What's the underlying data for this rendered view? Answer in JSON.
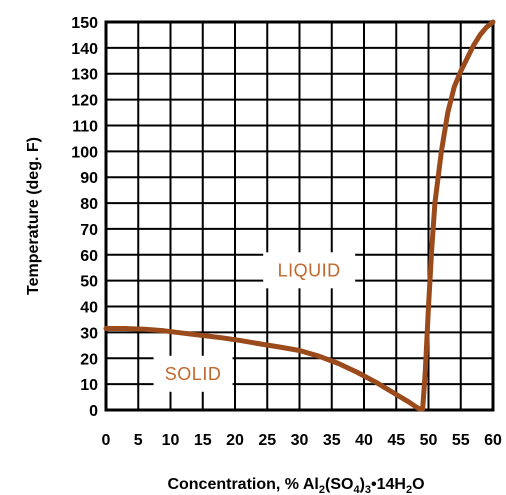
{
  "chart_data": {
    "type": "line",
    "title": "",
    "xlabel": "Concentration, % Al2(SO4)3•14H2O",
    "xlabel_parts": {
      "prefix": "Concentration, % Al",
      "sub1": "2",
      "mid1": "(SO",
      "sub2": "4",
      "mid2": ")",
      "sub3": "3",
      "mid3": "•14H",
      "sub4": "2",
      "suffix": "O"
    },
    "ylabel": "Temperature (deg. F)",
    "xlim": [
      0,
      60
    ],
    "ylim": [
      0,
      150
    ],
    "xticks": [
      0,
      5,
      10,
      15,
      20,
      25,
      30,
      35,
      40,
      45,
      50,
      55,
      60
    ],
    "yticks": [
      0,
      10,
      20,
      30,
      40,
      50,
      60,
      70,
      80,
      90,
      100,
      110,
      120,
      130,
      140,
      150
    ],
    "grid": true,
    "series": [
      {
        "x": [
          0,
          3,
          6,
          9,
          12,
          15,
          18,
          21,
          24,
          27,
          30,
          33,
          36,
          39,
          42,
          45,
          47,
          48.5,
          49.1,
          49.5,
          50,
          50.5,
          51,
          52,
          53,
          54,
          55,
          56,
          57,
          58,
          59,
          60
        ],
        "y": [
          31.5,
          31.5,
          31.2,
          30.6,
          29.7,
          28.8,
          27.9,
          26.8,
          25.5,
          24.3,
          23,
          20.8,
          18,
          14.5,
          10.5,
          6,
          3,
          0.5,
          0.5,
          15,
          40,
          62,
          80,
          100,
          115,
          125,
          131,
          136,
          141,
          145,
          148,
          150
        ],
        "color": "#9b4a1b"
      }
    ],
    "annotations": [
      {
        "text": "LIQUID",
        "x": 31.5,
        "y": 54
      },
      {
        "text": "SOLID",
        "x": 13.5,
        "y": 14
      }
    ],
    "colors": {
      "curve": "#9b4a1b",
      "region_text": "#c2672b",
      "grid": "#000000",
      "label_background": "#ffffff"
    }
  }
}
